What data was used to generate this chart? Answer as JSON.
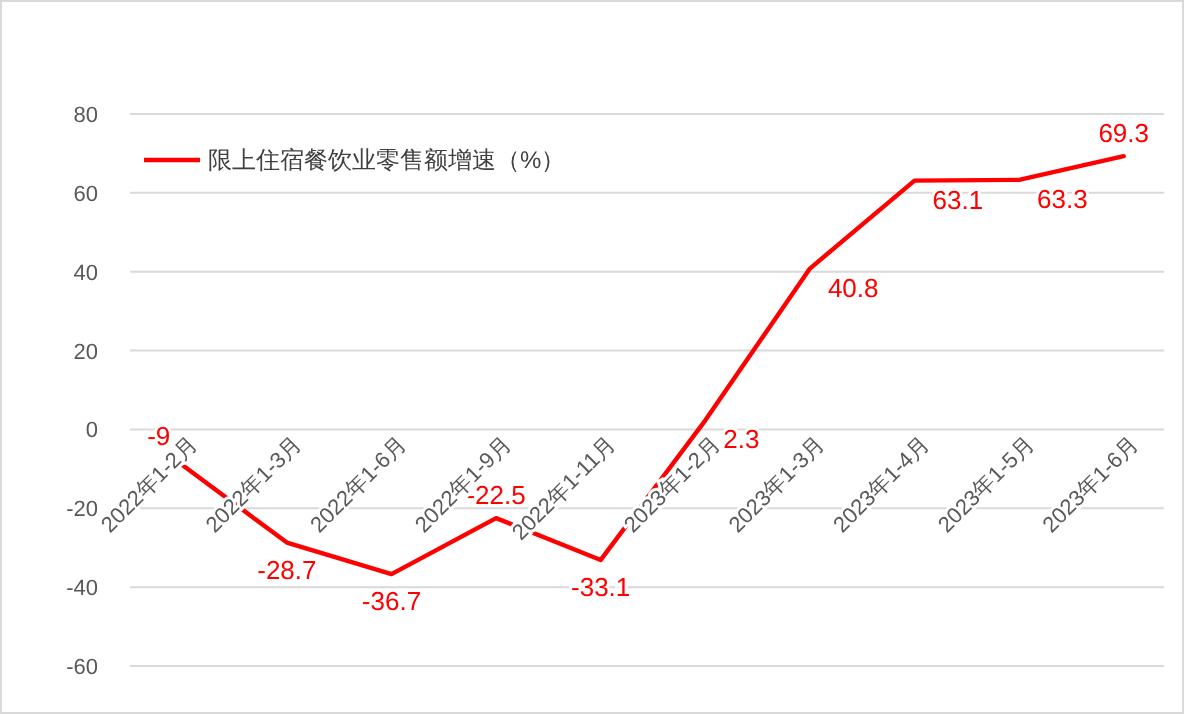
{
  "chart_data": {
    "type": "line",
    "categories": [
      "2022年1-2月",
      "2022年1-3月",
      "2022年1-6月",
      "2022年1-9月",
      "2022年1-11月",
      "2023年1-2月",
      "2023年1-3月",
      "2023年1-4月",
      "2023年1-5月",
      "2023年1-6月"
    ],
    "series": [
      {
        "name": "限上住宿餐饮业零售额增速（%）",
        "color": "#ff0000",
        "values": [
          -9,
          -28.7,
          -36.7,
          -22.5,
          -33.1,
          2.3,
          40.8,
          63.1,
          63.3,
          69.3
        ]
      }
    ],
    "ylim": [
      -60,
      80
    ],
    "yticks": [
      -60,
      -40,
      -20,
      0,
      20,
      40,
      60,
      80
    ],
    "grid": "y",
    "legend": "top left",
    "data_labels": true,
    "marker": "none",
    "line_style": "solid"
  }
}
